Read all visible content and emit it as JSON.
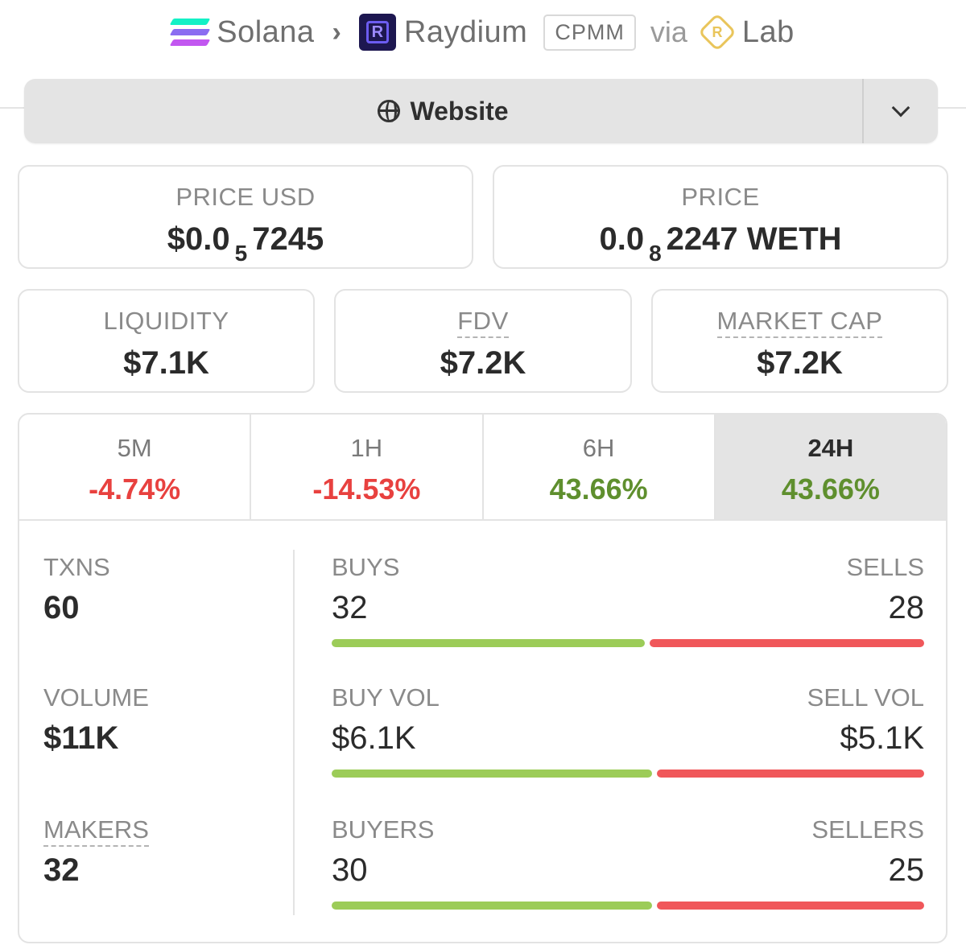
{
  "breadcrumb": {
    "chain": "Solana",
    "dex": "Raydium",
    "pool_type": "CPMM",
    "via": "via",
    "launchpad": "Lab"
  },
  "website_button": {
    "label": "Website"
  },
  "price_usd": {
    "label": "PRICE USD",
    "prefix": "$0.0",
    "subscript": "5",
    "digits": "7245"
  },
  "price_native": {
    "label": "PRICE",
    "prefix": "0.0",
    "subscript": "8",
    "digits": "2247 WETH"
  },
  "liquidity": {
    "label": "LIQUIDITY",
    "value": "$7.1K"
  },
  "fdv": {
    "label": "FDV",
    "value": "$7.2K"
  },
  "market_cap": {
    "label": "MARKET CAP",
    "value": "$7.2K"
  },
  "timeframes": [
    {
      "label": "5M",
      "change": "-4.74%",
      "direction": "down"
    },
    {
      "label": "1H",
      "change": "-14.53%",
      "direction": "down"
    },
    {
      "label": "6H",
      "change": "43.66%",
      "direction": "up"
    },
    {
      "label": "24H",
      "change": "43.66%",
      "direction": "up",
      "selected": true
    }
  ],
  "stats": {
    "txns": {
      "label": "TXNS",
      "value": "60"
    },
    "volume": {
      "label": "VOLUME",
      "value": "$11K"
    },
    "makers": {
      "label": "MAKERS",
      "value": "32"
    },
    "buys": {
      "label": "BUYS",
      "value": "32"
    },
    "sells": {
      "label": "SELLS",
      "value": "28"
    },
    "buy_vol": {
      "label": "BUY VOL",
      "value": "$6.1K"
    },
    "sell_vol": {
      "label": "SELL VOL",
      "value": "$5.1K"
    },
    "buyers": {
      "label": "BUYERS",
      "value": "30"
    },
    "sellers": {
      "label": "SELLERS",
      "value": "25"
    }
  },
  "bars": {
    "txns_buy_fraction": 0.533,
    "volume_buy_fraction": 0.545,
    "makers_buy_fraction": 0.545
  },
  "colors": {
    "positive": "#5f8f2e",
    "negative": "#e8413f",
    "buy_bar": "#9ccc58",
    "sell_bar": "#f0575a"
  }
}
